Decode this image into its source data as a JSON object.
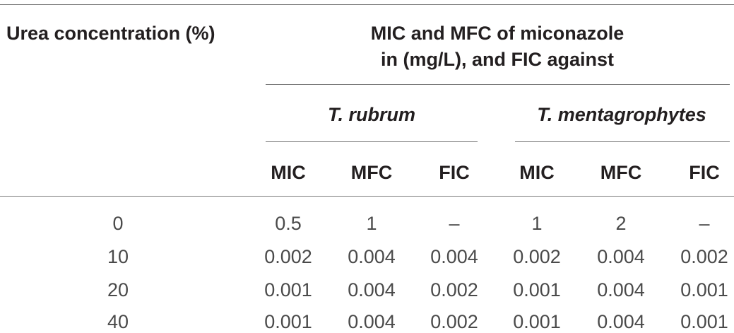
{
  "table": {
    "row_header": "Urea concentration (%)",
    "group_header_line1": "MIC and MFC of miconazole",
    "group_header_line2": "in (mg/L), and FIC against",
    "species": [
      "T. rubrum",
      "T. mentagrophytes"
    ],
    "columns": [
      "MIC",
      "MFC",
      "FIC",
      "MIC",
      "MFC",
      "FIC"
    ],
    "rows": [
      {
        "urea": "0",
        "values": [
          "0.5",
          "1",
          "–",
          "1",
          "2",
          "–"
        ]
      },
      {
        "urea": "10",
        "values": [
          "0.002",
          "0.004",
          "0.004",
          "0.002",
          "0.004",
          "0.002"
        ]
      },
      {
        "urea": "20",
        "values": [
          "0.001",
          "0.004",
          "0.002",
          "0.001",
          "0.004",
          "0.001"
        ]
      },
      {
        "urea": "40",
        "values": [
          "0.001",
          "0.004",
          "0.002",
          "0.001",
          "0.004",
          "0.001"
        ]
      }
    ]
  }
}
